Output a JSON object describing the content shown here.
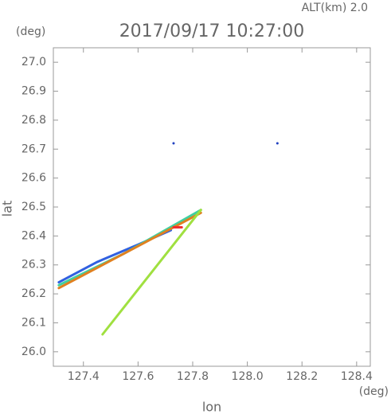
{
  "chart_data": {
    "type": "line",
    "title": "2017/09/17 10:27:00",
    "subtitle": "ALT(km) 2.0",
    "y_unit": "(deg)",
    "x_unit": "(deg)",
    "x_label": "lon",
    "y_label": "lat",
    "xlim": [
      127.29,
      128.45
    ],
    "ylim": [
      25.95,
      27.05
    ],
    "xticks": [
      {
        "value": 127.4,
        "label": "127.4"
      },
      {
        "value": 127.6,
        "label": "127.6"
      },
      {
        "value": 127.8,
        "label": "127.8"
      },
      {
        "value": 128.0,
        "label": "128.0"
      },
      {
        "value": 128.2,
        "label": "128.2"
      },
      {
        "value": 128.4,
        "label": "128.4"
      }
    ],
    "yticks": [
      {
        "value": 26.0,
        "label": "26.0"
      },
      26.1,
      26.2,
      26.3,
      26.4,
      26.5,
      26.6,
      26.7,
      26.8,
      26.9,
      {
        "value": 27.0,
        "label": "27.0"
      }
    ],
    "series": [
      {
        "color": "#3060e0",
        "x": [
          127.31,
          127.45,
          127.6,
          127.72
        ],
        "y": [
          26.24,
          26.31,
          26.37,
          26.42
        ]
      },
      {
        "color": "#40d0a0",
        "x": [
          127.31,
          127.55,
          127.83
        ],
        "y": [
          26.23,
          26.34,
          26.49
        ]
      },
      {
        "color": "#e08020",
        "x": [
          127.31,
          127.83
        ],
        "y": [
          26.22,
          26.48
        ]
      },
      {
        "color": "#a0e040",
        "x": [
          127.47,
          127.83
        ],
        "y": [
          26.06,
          26.49
        ]
      },
      {
        "color": "#f03030",
        "x": [
          127.73,
          127.76
        ],
        "y": [
          26.43,
          26.43
        ]
      },
      {
        "color": "#2040c0",
        "x": [
          127.73
        ],
        "y": [
          26.72
        ]
      },
      {
        "color": "#2040c0",
        "x": [
          128.11
        ],
        "y": [
          26.72
        ]
      }
    ]
  }
}
